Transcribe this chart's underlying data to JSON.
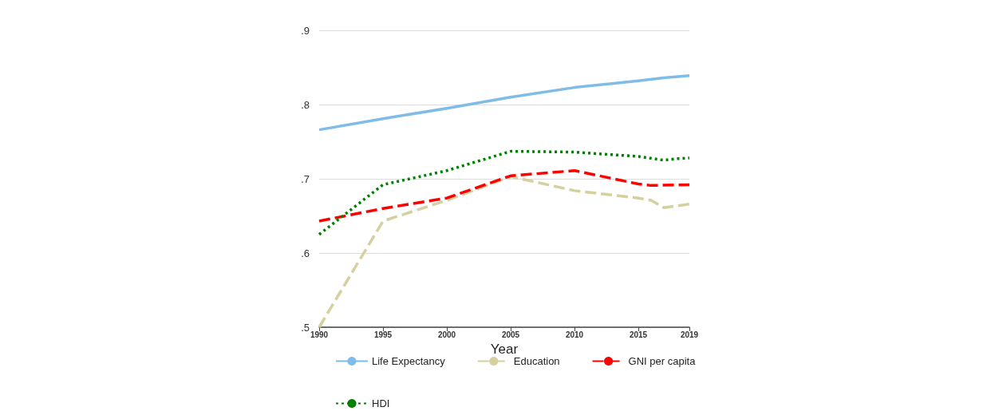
{
  "chart_data": {
    "type": "line",
    "xlabel": "Year",
    "xlim": [
      1990,
      2019
    ],
    "xticks": [
      1990,
      1995,
      2000,
      2005,
      2010,
      2015,
      2019
    ],
    "ylim": [
      0.5,
      0.9
    ],
    "yticks": [
      {
        "value": 0.5,
        "label": ".5"
      },
      {
        "value": 0.6,
        "label": ".6"
      },
      {
        "value": 0.7,
        "label": ".7"
      },
      {
        "value": 0.8,
        "label": ".8"
      },
      {
        "value": 0.9,
        "label": ".9"
      }
    ],
    "grid": "y",
    "legend": "bottom",
    "marker": "none",
    "series": [
      {
        "name": "Life Expectancy",
        "color": "#7fbce8",
        "line_style": "solid",
        "x": [
          1990,
          1995,
          2000,
          2005,
          2010,
          2015,
          2017,
          2019
        ],
        "values": [
          0.766,
          0.781,
          0.795,
          0.81,
          0.823,
          0.832,
          0.836,
          0.839
        ]
      },
      {
        "name": "Education",
        "color": "#d6cfa0",
        "line_style": "dashed",
        "x": [
          1990,
          1995,
          2000,
          2005,
          2010,
          2015,
          2016,
          2017,
          2019
        ],
        "values": [
          0.5,
          0.643,
          0.671,
          0.703,
          0.684,
          0.674,
          0.671,
          0.661,
          0.666
        ]
      },
      {
        "name": "GNI per capita",
        "color": "#ff0000",
        "line_style": "dashed",
        "x": [
          1990,
          1995,
          2000,
          2005,
          2010,
          2015,
          2016,
          2019
        ],
        "values": [
          0.643,
          0.66,
          0.674,
          0.704,
          0.711,
          0.693,
          0.691,
          0.692
        ]
      },
      {
        "name": "HDI",
        "color": "#008000",
        "line_style": "dotted",
        "x": [
          1990,
          1995,
          2000,
          2005,
          2010,
          2015,
          2017,
          2018,
          2019
        ],
        "values": [
          0.625,
          0.692,
          0.711,
          0.737,
          0.736,
          0.73,
          0.725,
          0.727,
          0.728
        ]
      }
    ]
  }
}
